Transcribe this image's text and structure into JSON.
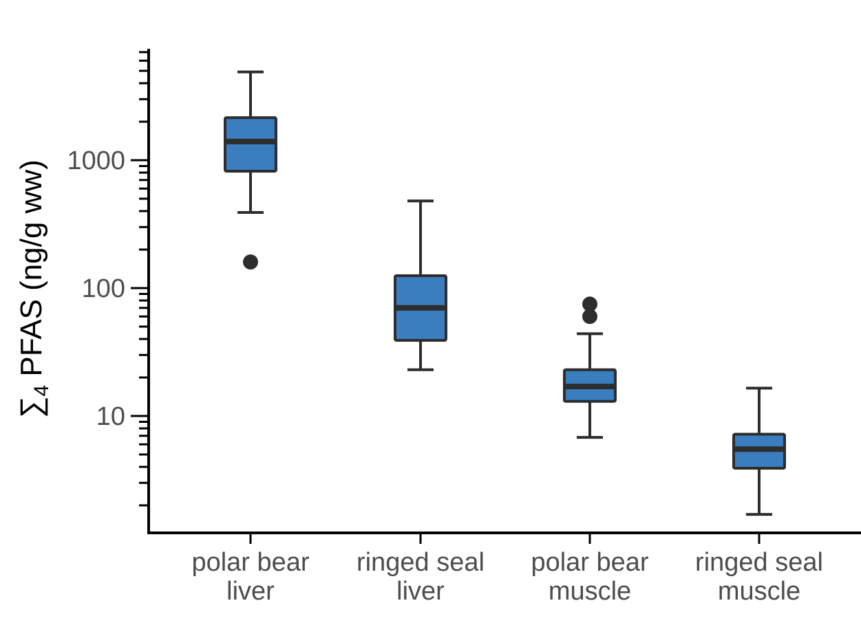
{
  "chart_data": {
    "type": "box",
    "ylabel_prefix": "∑",
    "ylabel_subscript": "4",
    "ylabel_main": " PFAS (ng/g ww)",
    "yscale": "log",
    "ylim": [
      1.35,
      7000
    ],
    "yticks": [
      {
        "value": 10,
        "label": "10"
      },
      {
        "value": 100,
        "label": "100"
      },
      {
        "value": 1000,
        "label": "1000"
      }
    ],
    "categories": [
      {
        "line1": "polar bear",
        "line2": "liver"
      },
      {
        "line1": "ringed seal",
        "line2": "liver"
      },
      {
        "line1": "polar bear",
        "line2": "muscle"
      },
      {
        "line1": "ringed seal",
        "line2": "muscle"
      }
    ],
    "boxes": [
      {
        "whisker_low": 390,
        "q1": 820,
        "median": 1400,
        "q3": 2150,
        "whisker_high": 4900,
        "outliers": [
          160
        ]
      },
      {
        "whisker_low": 23,
        "q1": 39,
        "median": 70,
        "q3": 125,
        "whisker_high": 480,
        "outliers": []
      },
      {
        "whisker_low": 6.8,
        "q1": 13,
        "median": 17,
        "q3": 23,
        "whisker_high": 44,
        "outliers": [
          60,
          75
        ]
      },
      {
        "whisker_low": 1.7,
        "q1": 3.9,
        "median": 5.5,
        "q3": 7.2,
        "whisker_high": 16.5,
        "outliers": []
      }
    ],
    "colors": {
      "box_fill": "#3a7ebf",
      "box_stroke": "#2d2d2d",
      "outlier": "#2d2d2d"
    },
    "grid": false,
    "legend": "none"
  }
}
